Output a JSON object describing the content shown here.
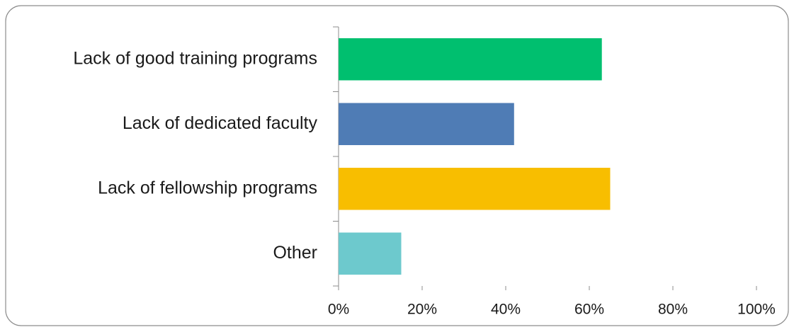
{
  "chart_data": {
    "type": "barh",
    "categories": [
      "Lack of good training programs",
      "Lack of dedicated faculty",
      "Lack of fellowship programs",
      "Other"
    ],
    "values": [
      63,
      42,
      65,
      15
    ],
    "colors": [
      "#00bf6f",
      "#4f7cb5",
      "#f8be00",
      "#6dc9cd"
    ],
    "xlim": [
      0,
      100
    ],
    "xticks": [
      {
        "value": 0,
        "label": "0%"
      },
      {
        "value": 20,
        "label": "20%"
      },
      {
        "value": 40,
        "label": "40%"
      },
      {
        "value": 60,
        "label": "60%"
      },
      {
        "value": 80,
        "label": "80%"
      },
      {
        "value": 100,
        "label": "100%"
      }
    ],
    "grid": false
  }
}
